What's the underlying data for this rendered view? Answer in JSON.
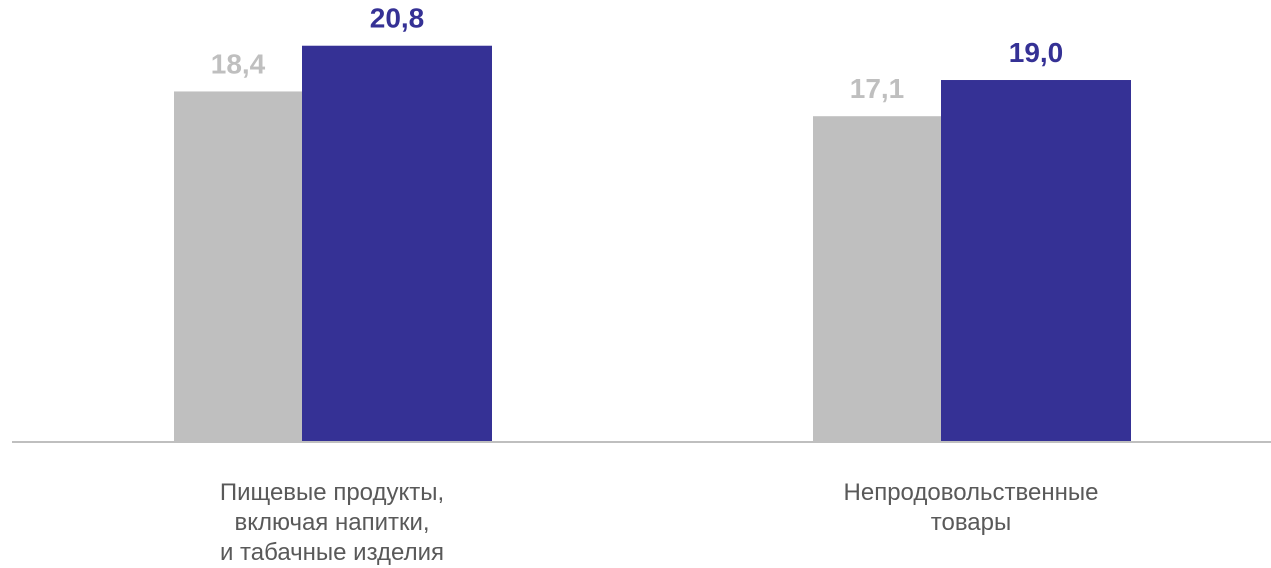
{
  "chart_data": {
    "type": "bar",
    "categories": [
      [
        "Пищевые продукты,",
        "включая напитки,",
        "и табачные изделия"
      ],
      [
        "Непродовольственные",
        "товары"
      ]
    ],
    "series": [
      {
        "values": [
          18.4,
          17.1
        ],
        "value_labels": [
          "18,4",
          "17,1"
        ],
        "color": "#bfbfbf"
      },
      {
        "values": [
          20.8,
          19.0
        ],
        "value_labels": [
          "20,8",
          "19,0"
        ],
        "color": "#353195"
      }
    ],
    "ylim": [
      0,
      23.2
    ],
    "axis_color": "#bfbfbf",
    "category_label_color": "#595959",
    "grid": false,
    "legend": false
  }
}
